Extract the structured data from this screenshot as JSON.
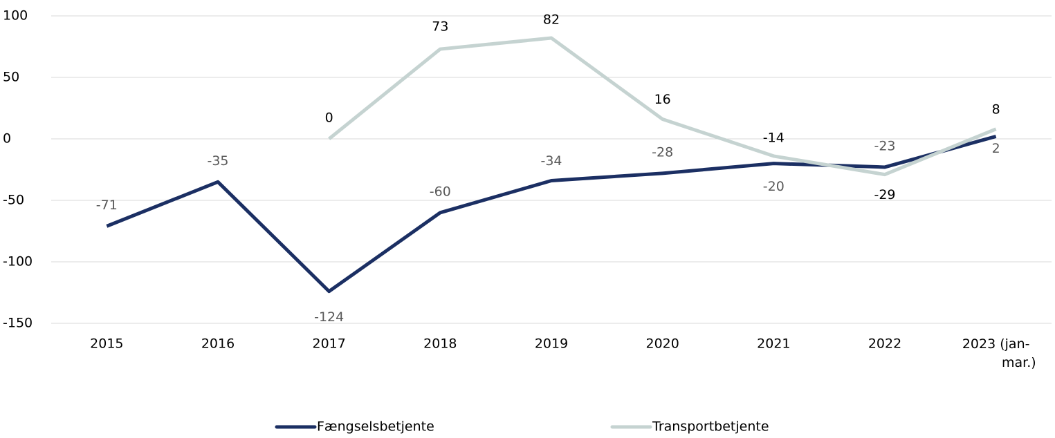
{
  "chart_data": {
    "type": "line",
    "categories": [
      "2015",
      "2016",
      "2017",
      "2018",
      "2019",
      "2020",
      "2021",
      "2022",
      "2023 (jan-mar.)"
    ],
    "series": [
      {
        "name": "Fængselsbetjente",
        "color": "#1b2f63",
        "values": [
          -71,
          -35,
          -124,
          -60,
          -34,
          -28,
          -20,
          -23,
          2
        ]
      },
      {
        "name": "Transportbetjente",
        "color": "#c5d3d1",
        "values": [
          null,
          null,
          0,
          73,
          82,
          16,
          -14,
          -29,
          8
        ]
      }
    ],
    "ylim": [
      -150,
      100
    ],
    "yticks": [
      -150,
      -100,
      -50,
      0,
      50,
      100
    ],
    "grid": true
  }
}
